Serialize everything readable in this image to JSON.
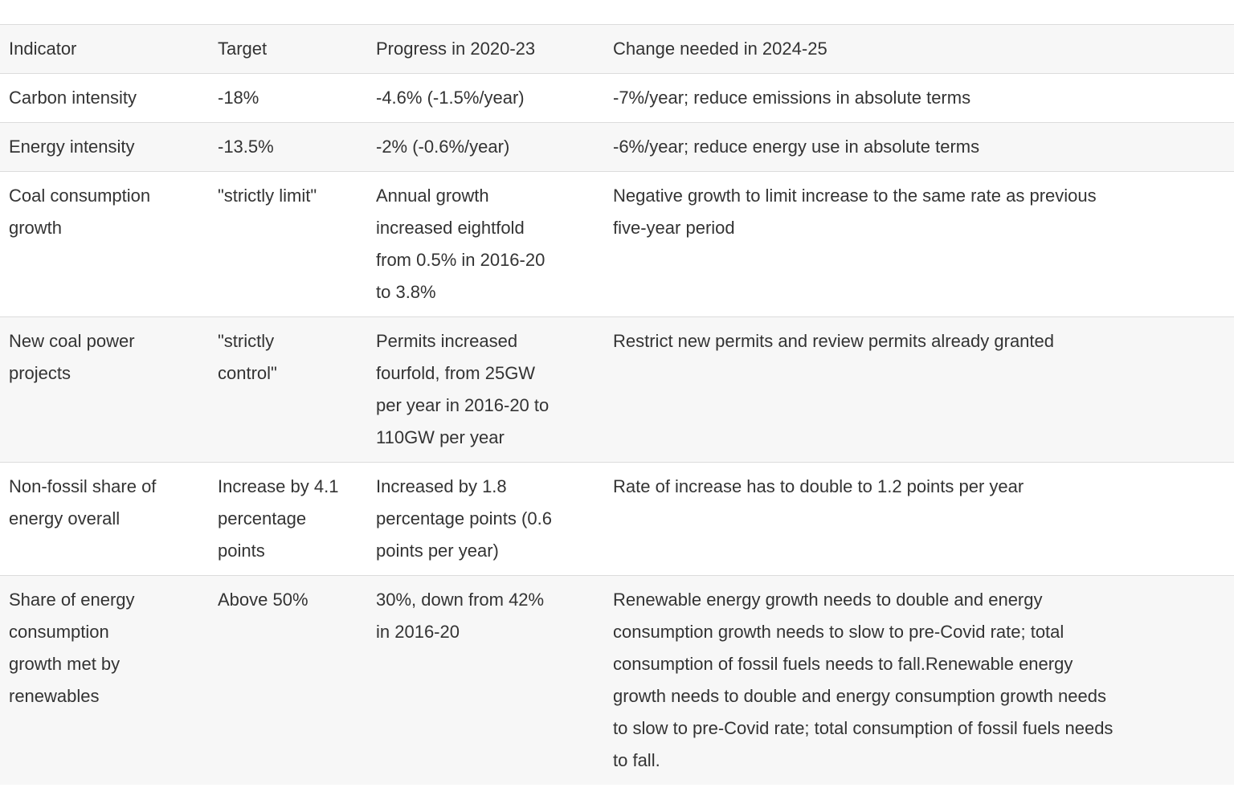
{
  "colors": {
    "text": "#333333",
    "row_shade_bg": "#f7f7f7",
    "row_border": "#dcdcdc",
    "page_bg": "#ffffff"
  },
  "chart_data": {
    "type": "table",
    "columns": [
      "Indicator",
      "Target",
      "Progress in 2020-23",
      "Change needed in 2024-25"
    ],
    "rows": [
      [
        "Carbon intensity",
        "-18%",
        "-4.6% (-1.5%/year)",
        "-7%/year; reduce emissions in absolute terms"
      ],
      [
        "Energy intensity",
        "-13.5%",
        "-2% (-0.6%/year)",
        "-6%/year; reduce energy use in absolute terms"
      ],
      [
        "Coal consumption\ngrowth",
        "\"strictly limit\"",
        "Annual growth\nincreased eightfold\nfrom 0.5% in 2016-20\nto 3.8%",
        "Negative growth to limit increase to the same rate as previous\nfive-year period"
      ],
      [
        "New coal power\nprojects",
        "\"strictly\ncontrol\"",
        "Permits increased\nfourfold, from 25GW\nper year in 2016-20 to\n110GW per year",
        "Restrict new permits and review permits already granted"
      ],
      [
        "Non-fossil share of\nenergy overall",
        "Increase by 4.1\npercentage\npoints",
        "Increased by 1.8\npercentage points (0.6\npoints per year)",
        "Rate of increase has to double to 1.2 points per year"
      ],
      [
        "Share of energy\nconsumption\ngrowth met by\nrenewables",
        "Above 50%",
        "30%, down from 42%\nin 2016-20",
        "Renewable energy growth needs to double and energy\nconsumption growth needs to slow to pre-Covid rate; total\nconsumption of fossil fuels needs to fall.Renewable energy\ngrowth needs to double and energy consumption growth needs\nto slow to pre-Covid rate; total consumption of fossil fuels needs\nto fall."
      ]
    ]
  }
}
